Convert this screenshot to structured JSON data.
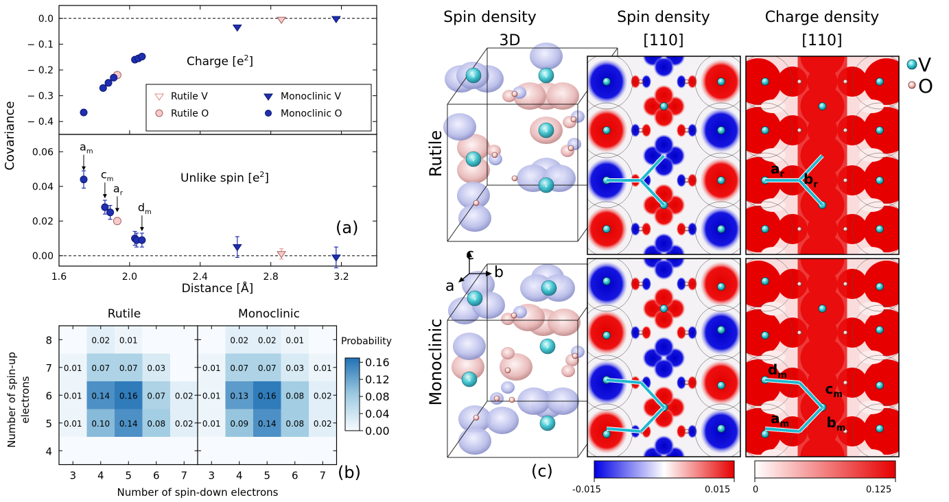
{
  "panel_a": {
    "type": "scatter",
    "letter": "(a)",
    "ylabel": "Covariance",
    "xlabel": "Distance [Å]",
    "xlim": [
      1.6,
      3.4
    ],
    "x_ticks": [
      "1.6",
      "2.0",
      "2.4",
      "2.8",
      "3.2"
    ],
    "x_tick_values": [
      1.6,
      2.0,
      2.4,
      2.8,
      3.2
    ],
    "charge": {
      "label": "Charge [e²]",
      "label_main": "Charge [e",
      "label_sup": "2",
      "label_end": "]",
      "ylim": [
        -0.45,
        0.05
      ],
      "y_ticks": [
        "0.0",
        "− 0.1",
        "− 0.2",
        "− 0.3",
        "− 0.4"
      ],
      "y_tick_values": [
        0.0,
        -0.1,
        -0.2,
        -0.3,
        -0.4
      ],
      "series": [
        {
          "name": "Rutile V",
          "marker": "triangle-down-open",
          "color": "#f4b6b6",
          "x": [
            2.86
          ],
          "y": [
            -0.005
          ]
        },
        {
          "name": "Rutile O",
          "marker": "circle-open",
          "color": "#f4b6b6",
          "x": [
            1.93
          ],
          "y": [
            -0.22
          ]
        },
        {
          "name": "Monoclinic V",
          "marker": "triangle-down",
          "color": "#1f2fb0",
          "x": [
            2.61,
            3.17
          ],
          "y": [
            -0.035,
            -0.002
          ]
        },
        {
          "name": "Monoclinic O",
          "marker": "circle",
          "color": "#1f2fb0",
          "x": [
            1.74,
            1.85,
            1.88,
            1.91,
            2.03,
            2.05,
            2.07
          ],
          "y": [
            -0.365,
            -0.27,
            -0.25,
            -0.23,
            -0.16,
            -0.155,
            -0.148
          ]
        }
      ],
      "legend": [
        {
          "label": "Rutile V",
          "marker": "triangle-down-open",
          "color": "#f4b6b6"
        },
        {
          "label": "Monoclinic V",
          "marker": "triangle-down",
          "color": "#1f2fb0"
        },
        {
          "label": "Rutile O",
          "marker": "circle-open",
          "color": "#f4b6b6"
        },
        {
          "label": "Monoclinic O",
          "marker": "circle",
          "color": "#1f2fb0"
        }
      ]
    },
    "unlike_spin": {
      "label": "Unlike spin [e²]",
      "label_main": "Unlike spin [e",
      "label_sup": "2",
      "label_end": "]",
      "ylim": [
        -0.006,
        0.07
      ],
      "y_ticks": [
        "0.06",
        "0.04",
        "0.02",
        "0.00"
      ],
      "y_tick_values": [
        0.06,
        0.04,
        0.02,
        0.0
      ],
      "series": [
        {
          "name": "Monoclinic O",
          "marker": "circle",
          "color": "#1f2fb0",
          "x": [
            1.74,
            1.86,
            1.89,
            2.03,
            2.04,
            2.07
          ],
          "y": [
            0.044,
            0.028,
            0.025,
            0.01,
            0.009,
            0.009
          ],
          "err": [
            0.005,
            0.004,
            0.004,
            0.004,
            0.004,
            0.004
          ]
        },
        {
          "name": "Rutile O",
          "marker": "circle-open",
          "color": "#f4b6b6",
          "x": [
            1.93
          ],
          "y": [
            0.02
          ],
          "err": [
            0.002
          ]
        },
        {
          "name": "Monoclinic V",
          "marker": "triangle-down",
          "color": "#1f2fb0",
          "x": [
            2.61,
            3.17
          ],
          "y": [
            0.005,
            -0.001
          ],
          "err": [
            0.006,
            0.006
          ]
        },
        {
          "name": "Rutile V",
          "marker": "triangle-down-open",
          "color": "#f4b6b6",
          "x": [
            2.86
          ],
          "y": [
            0.001
          ],
          "err": [
            0.003
          ]
        }
      ],
      "annotations": [
        {
          "text": "a",
          "sub": "m",
          "x": 1.74,
          "y": 0.044
        },
        {
          "text": "c",
          "sub": "m",
          "x": 1.86,
          "y": 0.028
        },
        {
          "text": "a",
          "sub": "r",
          "x": 1.93,
          "y": 0.02
        },
        {
          "text": "d",
          "sub": "m",
          "x": 2.07,
          "y": 0.009
        }
      ]
    }
  },
  "panel_b": {
    "type": "heatmap",
    "letter": "(b)",
    "xlabel": "Number of spin-down electrons",
    "ylabel_line1": "Number of spin-up",
    "ylabel_line2": "electrons",
    "x_ticks": [
      "3",
      "4",
      "5",
      "6",
      "7"
    ],
    "y_ticks": [
      "8",
      "7",
      "6",
      "5",
      "4"
    ],
    "colorbar_label": "Probability",
    "colorbar_ticks": [
      "0.16",
      "0.12",
      "0.08",
      "0.04",
      "0.00"
    ],
    "colorbar_tick_values": [
      0.16,
      0.12,
      0.08,
      0.04,
      0.0
    ],
    "vmax": 0.17,
    "heatmaps": [
      {
        "title": "Rutile",
        "values": [
          [
            0.0,
            0.02,
            0.01,
            0.0,
            0.0
          ],
          [
            0.01,
            0.07,
            0.07,
            0.03,
            0.0
          ],
          [
            0.01,
            0.14,
            0.16,
            0.07,
            0.02
          ],
          [
            0.01,
            0.1,
            0.14,
            0.08,
            0.02
          ],
          [
            0.0,
            0.0,
            0.0,
            0.0,
            0.0
          ]
        ],
        "labels": [
          [
            "",
            "0.02",
            "0.01",
            "",
            ""
          ],
          [
            "0.01",
            "0.07",
            "0.07",
            "0.03",
            ""
          ],
          [
            "0.01",
            "0.14",
            "0.16",
            "0.07",
            "0.02"
          ],
          [
            "0.01",
            "0.10",
            "0.14",
            "0.08",
            "0.02"
          ],
          [
            "",
            "",
            "",
            "",
            ""
          ]
        ]
      },
      {
        "title": "Monoclinic",
        "values": [
          [
            0.0,
            0.02,
            0.02,
            0.01,
            0.0
          ],
          [
            0.01,
            0.07,
            0.07,
            0.03,
            0.01
          ],
          [
            0.01,
            0.13,
            0.16,
            0.08,
            0.02
          ],
          [
            0.01,
            0.09,
            0.14,
            0.08,
            0.02
          ],
          [
            0.0,
            0.0,
            0.0,
            0.0,
            0.0
          ]
        ],
        "labels": [
          [
            "",
            "0.02",
            "0.02",
            "0.01",
            ""
          ],
          [
            "0.01",
            "0.07",
            "0.07",
            "0.03",
            "0.01"
          ],
          [
            "0.01",
            "0.13",
            "0.16",
            "0.08",
            "0.02"
          ],
          [
            "0.01",
            "0.09",
            "0.14",
            "0.08",
            "0.02"
          ],
          [
            "",
            "",
            "",
            "",
            ""
          ]
        ]
      }
    ]
  },
  "panel_c": {
    "letter": "(c)",
    "col1_line1": "Spin density",
    "col1_line2": "3D",
    "col2_line1": "Spin density",
    "col2_line2": "[110]",
    "col3_line1": "Charge density",
    "col3_line2": "[110]",
    "row1": "Rutile",
    "row2": "Monoclinic",
    "axis_c": "c",
    "axis_a": "a",
    "axis_b": "b",
    "legend_v": "V",
    "legend_o": "O",
    "atom_label_v": "v",
    "spin_min": "-0.015",
    "spin_max": "0.015",
    "charge_min": "0",
    "charge_max": "0.125",
    "bond_r": {
      "a": "a",
      "a_sub": "r",
      "b": "b",
      "b_sub": "r"
    },
    "bond_m": {
      "d": "d",
      "d_sub": "m",
      "c": "c",
      "c_sub": "m",
      "a": "a",
      "a_sub": "m",
      "b": "b",
      "b_sub": "m"
    },
    "colors": {
      "blue": "#1010e0",
      "red": "#e01010",
      "teal": "#3ec9c9",
      "pink": "#f0a0a0",
      "bond": "#20b8d0"
    }
  }
}
